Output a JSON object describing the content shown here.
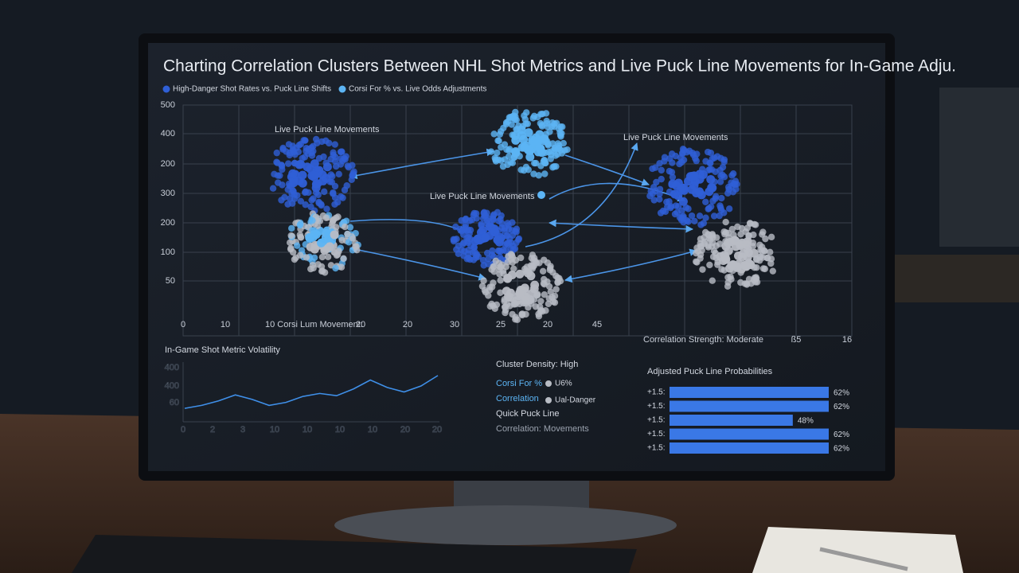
{
  "title": "Charting Correlation Clusters Between NHL Shot Metrics and Live Puck Line Movements for In-Game Adju.",
  "chart_data": [
    {
      "type": "scatter",
      "series": [
        {
          "name": "High-Danger Shot Rates vs. Puck Line Shifts",
          "color": "#2f5fd6"
        },
        {
          "name": "Corsi For % vs. Live Odds Adjustments",
          "color": "#5cb4f4"
        }
      ],
      "y_labels": [
        "500",
        "400",
        "200",
        "300",
        "200",
        "100",
        "50"
      ],
      "x_labels": [
        "0",
        "10",
        "10 Corsi Lum Movement:",
        "20",
        "20",
        "30",
        "25",
        "20",
        "45",
        "Correlation Strength: Moderate",
        "ß5",
        "16"
      ],
      "annotations": [
        "Live Puck Line Movements",
        "Live Puck Line Movements",
        "Live Puck Line Movements"
      ]
    },
    {
      "type": "line",
      "title": "In-Game Shot Metric Volatility",
      "color": "#3f8fe8",
      "y_labels": [
        "400",
        "400",
        "60"
      ],
      "x_labels": [
        "0",
        "2",
        "3",
        "10",
        "10",
        "10",
        "10",
        "20",
        "20"
      ],
      "values": [
        18,
        22,
        28,
        36,
        30,
        22,
        26,
        34,
        38,
        35,
        44,
        56,
        46,
        40,
        48,
        62
      ],
      "ylim": [
        0,
        80
      ]
    },
    {
      "type": "text",
      "title": "Cluster Density: High",
      "lines": [
        "Corsi For %",
        "U6%",
        "Correlation",
        "Ual-Danger",
        "Quick Puck Line",
        "Correlation: Movements"
      ]
    },
    {
      "type": "hbar",
      "title": "Adjusted Puck Line Probabilities",
      "color": "#3a78e6",
      "categories": [
        "+1.5:",
        "+1.5:",
        "+1.5:",
        "+1.5:",
        "+1.5:"
      ],
      "values": [
        62,
        62,
        48,
        62,
        62
      ],
      "value_labels": [
        "62%",
        "62%",
        "48%",
        "62%",
        "62%"
      ],
      "xlim": [
        0,
        62
      ]
    }
  ]
}
